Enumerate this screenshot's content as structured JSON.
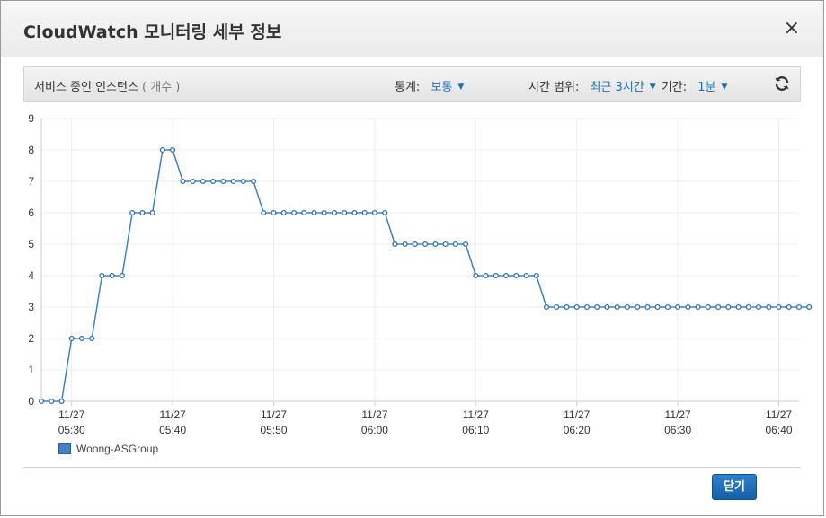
{
  "dialog": {
    "title": "CloudWatch 모니터링 세부 정보",
    "close_icon": "×",
    "close_button_label": "닫기"
  },
  "toolbar": {
    "metric_title": "서비스 중인 인스턴스",
    "metric_unit": "( 개수 )",
    "statistic_label": "통계:",
    "statistic_value": "보통",
    "time_range_label": "시간 범위:",
    "time_range_value": "최근 3시간",
    "period_label": "기간:",
    "period_value": "1분",
    "refresh_icon": "refresh-icon"
  },
  "legend": {
    "series_label": "Woong-ASGroup",
    "color": "#3f82c6"
  },
  "chart_data": {
    "type": "line",
    "title": "",
    "xlabel": "",
    "ylabel": "",
    "ylim": [
      0,
      9
    ],
    "y_ticks": [
      "0",
      "1",
      "2",
      "3",
      "4",
      "5",
      "6",
      "7",
      "8",
      "9"
    ],
    "x_ticks": [
      {
        "t": 30,
        "date": "11/27",
        "time": "05:30"
      },
      {
        "t": 40,
        "date": "11/27",
        "time": "05:40"
      },
      {
        "t": 50,
        "date": "11/27",
        "time": "05:50"
      },
      {
        "t": 60,
        "date": "11/27",
        "time": "06:00"
      },
      {
        "t": 70,
        "date": "11/27",
        "time": "06:10"
      },
      {
        "t": 80,
        "date": "11/27",
        "time": "06:20"
      },
      {
        "t": 90,
        "date": "11/27",
        "time": "06:30"
      },
      {
        "t": 100,
        "date": "11/27",
        "time": "06:40"
      }
    ],
    "grid": true,
    "series": [
      {
        "name": "Woong-ASGroup",
        "start": "05:27",
        "interval_minutes": 1,
        "values": [
          0,
          0,
          0,
          2,
          2,
          2,
          4,
          4,
          4,
          6,
          6,
          6,
          8,
          8,
          7,
          7,
          7,
          7,
          7,
          7,
          7,
          7,
          6,
          6,
          6,
          6,
          6,
          6,
          6,
          6,
          6,
          6,
          6,
          6,
          6,
          5,
          5,
          5,
          5,
          5,
          5,
          5,
          5,
          4,
          4,
          4,
          4,
          4,
          4,
          4,
          3,
          3,
          3,
          3,
          3,
          3,
          3,
          3,
          3,
          3,
          3,
          3,
          3,
          3,
          3,
          3,
          3,
          3,
          3,
          3,
          3,
          3,
          3,
          3,
          3,
          3,
          3
        ]
      }
    ]
  }
}
